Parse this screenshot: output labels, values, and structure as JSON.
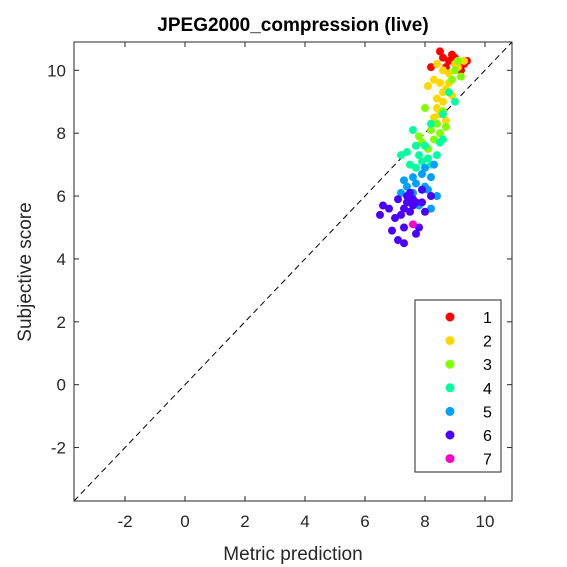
{
  "chart_data": {
    "type": "scatter",
    "title": "JPEG2000_compression (live)",
    "xlabel": "Metric prediction",
    "ylabel": "Subjective score",
    "xlim": [
      -3.7,
      10.9
    ],
    "ylim": [
      -3.7,
      10.9
    ],
    "xticks": [
      -2,
      0,
      2,
      4,
      6,
      8,
      10
    ],
    "yticks": [
      -2,
      0,
      2,
      4,
      6,
      8,
      10
    ],
    "xtick_labels": [
      "-2",
      "0",
      "2",
      "4",
      "6",
      "8",
      "10"
    ],
    "ytick_labels": [
      "-2",
      "0",
      "2",
      "4",
      "6",
      "8",
      "10"
    ],
    "grid": false,
    "reference_line": "y = x (dashed)",
    "legend": {
      "placement": "bottom-right"
    },
    "series": [
      {
        "name": "1",
        "color": "#ff0000",
        "points": [
          [
            8.5,
            10.6
          ],
          [
            8.6,
            10.4
          ],
          [
            8.8,
            10.3
          ],
          [
            9.0,
            10.4
          ],
          [
            9.3,
            10.2
          ],
          [
            9.2,
            10.0
          ],
          [
            8.7,
            10.1
          ],
          [
            8.9,
            10.5
          ],
          [
            8.2,
            10.1
          ],
          [
            9.4,
            10.3
          ]
        ]
      },
      {
        "name": "2",
        "color": "#ffd700",
        "points": [
          [
            8.4,
            10.2
          ],
          [
            8.6,
            10.0
          ],
          [
            8.8,
            9.9
          ],
          [
            9.0,
            10.2
          ],
          [
            9.1,
            10.1
          ],
          [
            8.3,
            9.7
          ],
          [
            8.5,
            9.6
          ],
          [
            8.7,
            9.4
          ],
          [
            8.9,
            9.2
          ],
          [
            8.6,
            9.0
          ],
          [
            8.4,
            8.8
          ],
          [
            8.5,
            8.6
          ],
          [
            8.3,
            8.5
          ],
          [
            8.7,
            8.4
          ],
          [
            8.1,
            9.5
          ],
          [
            8.6,
            9.3
          ],
          [
            9.3,
            10.3
          ],
          [
            8.4,
            9.1
          ],
          [
            8.8,
            9.6
          ]
        ]
      },
      {
        "name": "3",
        "color": "#7fff00",
        "points": [
          [
            9.0,
            10.0
          ],
          [
            9.2,
            9.8
          ],
          [
            9.1,
            10.3
          ],
          [
            8.9,
            9.7
          ],
          [
            8.6,
            8.7
          ],
          [
            8.4,
            8.3
          ],
          [
            8.2,
            8.1
          ],
          [
            8.0,
            8.8
          ],
          [
            7.8,
            7.9
          ],
          [
            8.3,
            7.8
          ],
          [
            8.7,
            8.2
          ],
          [
            8.1,
            7.5
          ],
          [
            7.9,
            7.7
          ],
          [
            8.5,
            8.0
          ]
        ]
      },
      {
        "name": "4",
        "color": "#00ff9f",
        "points": [
          [
            8.8,
            9.3
          ],
          [
            9.0,
            9.0
          ],
          [
            8.6,
            8.6
          ],
          [
            8.2,
            8.3
          ],
          [
            7.6,
            8.1
          ],
          [
            8.0,
            7.6
          ],
          [
            7.8,
            7.3
          ],
          [
            7.4,
            7.4
          ],
          [
            8.2,
            7.0
          ],
          [
            7.9,
            7.1
          ],
          [
            8.5,
            7.7
          ],
          [
            8.4,
            7.3
          ],
          [
            7.7,
            6.9
          ],
          [
            8.1,
            7.2
          ],
          [
            7.5,
            7.0
          ],
          [
            7.2,
            7.3
          ],
          [
            8.6,
            7.8
          ],
          [
            7.7,
            7.6
          ]
        ]
      },
      {
        "name": "5",
        "color": "#00a0ff",
        "points": [
          [
            8.3,
            7.0
          ],
          [
            8.0,
            6.9
          ],
          [
            7.6,
            6.6
          ],
          [
            7.4,
            6.3
          ],
          [
            7.2,
            6.1
          ],
          [
            7.5,
            6.0
          ],
          [
            7.7,
            6.4
          ],
          [
            8.2,
            6.6
          ],
          [
            7.9,
            6.7
          ],
          [
            7.3,
            6.5
          ],
          [
            7.6,
            6.1
          ],
          [
            8.1,
            6.2
          ],
          [
            8.4,
            6.0
          ],
          [
            7.5,
            5.8
          ],
          [
            7.8,
            5.7
          ],
          [
            8.0,
            6.3
          ],
          [
            8.2,
            5.6
          ]
        ]
      },
      {
        "name": "6",
        "color": "#4b00ff",
        "points": [
          [
            8.2,
            6.0
          ],
          [
            7.9,
            6.2
          ],
          [
            7.5,
            6.1
          ],
          [
            7.6,
            5.9
          ],
          [
            7.4,
            5.8
          ],
          [
            7.3,
            5.6
          ],
          [
            7.7,
            5.8
          ],
          [
            7.2,
            5.4
          ],
          [
            7.0,
            5.3
          ],
          [
            6.8,
            5.6
          ],
          [
            6.6,
            5.7
          ],
          [
            6.5,
            5.4
          ],
          [
            7.5,
            5.5
          ],
          [
            7.3,
            5.0
          ],
          [
            7.8,
            5.0
          ],
          [
            7.1,
            4.6
          ],
          [
            6.9,
            4.9
          ],
          [
            7.3,
            4.5
          ],
          [
            7.7,
            4.8
          ],
          [
            8.0,
            5.5
          ],
          [
            7.4,
            6.0
          ],
          [
            7.6,
            5.7
          ],
          [
            7.1,
            5.9
          ],
          [
            7.9,
            5.8
          ]
        ]
      },
      {
        "name": "7",
        "color": "#ff00c8",
        "points": [
          [
            7.6,
            5.1
          ]
        ]
      }
    ]
  }
}
